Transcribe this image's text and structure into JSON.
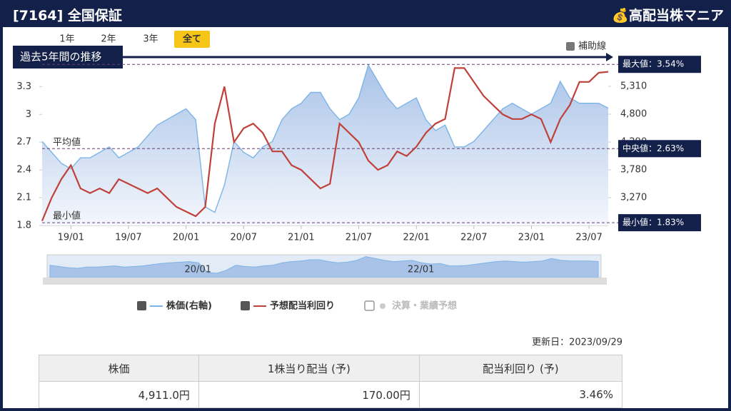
{
  "header": {
    "title": "[7164] 全国保証",
    "brand": "高配当株マニア"
  },
  "tabs": [
    "1年",
    "2年",
    "3年",
    "全て"
  ],
  "chart_data": {
    "type": "line",
    "title": "過去5年間の推移",
    "aux_toggle": "補助線",
    "x": [
      "18/10",
      "18/11",
      "18/12",
      "19/01",
      "19/02",
      "19/03",
      "19/04",
      "19/05",
      "19/06",
      "19/07",
      "19/08",
      "19/09",
      "19/10",
      "19/11",
      "19/12",
      "20/01",
      "20/02",
      "20/03",
      "20/04",
      "20/05",
      "20/06",
      "20/07",
      "20/08",
      "20/09",
      "20/10",
      "20/11",
      "20/12",
      "21/01",
      "21/02",
      "21/03",
      "21/04",
      "21/05",
      "21/06",
      "21/07",
      "21/08",
      "21/09",
      "21/10",
      "21/11",
      "21/12",
      "22/01",
      "22/02",
      "22/03",
      "22/04",
      "22/05",
      "22/06",
      "22/07",
      "22/08",
      "22/09",
      "22/10",
      "22/11",
      "22/12",
      "23/01",
      "23/02",
      "23/03",
      "23/04",
      "23/05",
      "23/06",
      "23/07",
      "23/08",
      "23/09"
    ],
    "xticks": [
      "19/01",
      "19/07",
      "20/01",
      "20/07",
      "21/01",
      "21/07",
      "22/01",
      "22/07",
      "23/01",
      "23/07"
    ],
    "series": [
      {
        "name": "株価(右軸)",
        "color": "#7db4e6",
        "axis": "y2",
        "values": [
          4300,
          4100,
          3900,
          3800,
          4000,
          4000,
          4100,
          4200,
          4000,
          4100,
          4200,
          4400,
          4600,
          4700,
          4800,
          4900,
          4700,
          3100,
          3000,
          3500,
          4300,
          4100,
          4000,
          4200,
          4300,
          4700,
          4900,
          5000,
          5200,
          5200,
          4900,
          4700,
          4800,
          5100,
          5700,
          5400,
          5100,
          4900,
          5000,
          5100,
          4700,
          4500,
          4600,
          4200,
          4200,
          4300,
          4500,
          4700,
          4900,
          5000,
          4900,
          4800,
          4900,
          5000,
          5400,
          5100,
          5000,
          5000,
          5000,
          4911
        ]
      },
      {
        "name": "予想配当利回り",
        "color": "#c0413a",
        "values": [
          1.85,
          2.1,
          2.3,
          2.45,
          2.2,
          2.15,
          2.2,
          2.15,
          2.3,
          2.25,
          2.2,
          2.15,
          2.2,
          2.1,
          2.0,
          1.95,
          1.9,
          2.0,
          2.9,
          3.3,
          2.7,
          2.85,
          2.9,
          2.8,
          2.6,
          2.6,
          2.45,
          2.4,
          2.3,
          2.2,
          2.25,
          2.9,
          2.8,
          2.7,
          2.5,
          2.4,
          2.45,
          2.6,
          2.55,
          2.65,
          2.8,
          2.9,
          2.95,
          3.5,
          3.5,
          3.35,
          3.2,
          3.1,
          3.0,
          2.95,
          2.95,
          3.0,
          2.95,
          2.7,
          2.95,
          3.1,
          3.35,
          3.35,
          3.45,
          3.46
        ]
      }
    ],
    "events_legend": "決算・業績予想",
    "ylim": [
      1.8,
      3.58
    ],
    "yticks": [
      1.8,
      2.1,
      2.4,
      2.7,
      3,
      3.3
    ],
    "y2lim": [
      2760,
      5781
    ],
    "y2ticks": [
      {
        "value": 3270,
        "label": "3,270"
      },
      {
        "value": 3780,
        "label": "3,780"
      },
      {
        "value": 4290,
        "label": "4,290"
      },
      {
        "value": 4800,
        "label": "4,800"
      },
      {
        "value": 5310,
        "label": "5,310"
      }
    ],
    "reference_lines": [
      {
        "value": 3.54,
        "label": "最大値：3.54%"
      },
      {
        "value": 2.63,
        "label": "中央値：2.63%"
      },
      {
        "value": 1.83,
        "label": "最小値：1.83%"
      }
    ],
    "annotations": [
      "平均値",
      "最小値"
    ]
  },
  "updated": "更新日：2023/09/29",
  "table": {
    "headers": [
      "株価",
      "1株当り配当 (予)",
      "配当利回り (予)"
    ],
    "rows": [
      [
        "4,911.0円",
        "170.00円",
        "3.46%"
      ]
    ]
  }
}
